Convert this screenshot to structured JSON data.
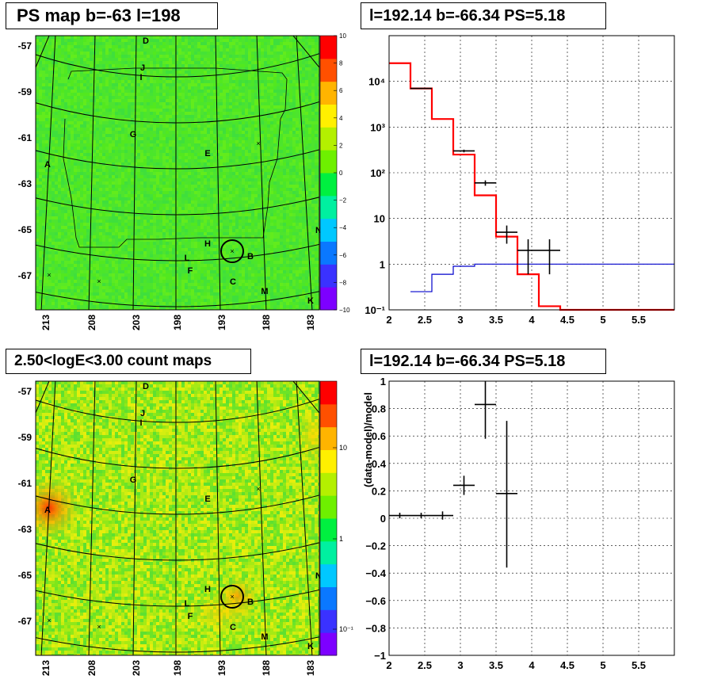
{
  "panels": {
    "tl_title": "PS map b=-63 l=198",
    "tr_title": "l=192.14 b=-66.34 PS=5.18",
    "bl_title": "2.50<logE<3.00 count maps",
    "br_title": "l=192.14 b=-66.34 PS=5.18"
  },
  "maps": {
    "b_labels": [
      "-57",
      "-59",
      "-61",
      "-63",
      "-65",
      "-67"
    ],
    "l_labels": [
      "213",
      "208",
      "203",
      "198",
      "193",
      "188",
      "183"
    ],
    "source_labels": [
      "D",
      "J",
      "I",
      "G",
      "E",
      "A",
      "H",
      "B",
      "L",
      "F",
      "C",
      "M",
      "K",
      "N"
    ]
  },
  "colorbars": {
    "top_labels": [
      "10",
      "8",
      "6",
      "4",
      "2",
      "0",
      "−2",
      "−4",
      "−6",
      "−8",
      "−10"
    ],
    "bottom_labels": [
      "10",
      "1",
      "10⁻¹"
    ],
    "top_palette": [
      "#7d00ff",
      "#3a32ff",
      "#0a78ff",
      "#00c8ff",
      "#00f0a0",
      "#00f040",
      "#6ef000",
      "#b4f000",
      "#fff000",
      "#ffb400",
      "#ff5000",
      "#ff0000"
    ],
    "bottom_palette": [
      "#7d00ff",
      "#3a32ff",
      "#0a78ff",
      "#00c8ff",
      "#00f0a0",
      "#00f040",
      "#6ef000",
      "#b4f000",
      "#fff000",
      "#ffb400",
      "#ff5000",
      "#ff0000"
    ]
  },
  "chart_data": [
    {
      "type": "histogram",
      "title": "l=192.14 b=-66.34 PS=5.18",
      "xlim": [
        2,
        6
      ],
      "ylim": [
        0.1,
        100000
      ],
      "yscale": "log",
      "grid": true,
      "x_tick_labels": [
        "2",
        "2.5",
        "3",
        "3.5",
        "4",
        "4.5",
        "5",
        "5.5"
      ],
      "y_tick_labels": [
        "10⁻¹",
        "1",
        "10",
        "10²",
        "10³",
        "10⁴"
      ],
      "series": [
        {
          "color": "#ff0000",
          "bins": [
            2.0,
            2.3,
            2.6,
            2.9,
            3.2,
            3.5,
            3.8,
            4.1,
            4.4,
            6.0
          ],
          "values": [
            25000,
            7000,
            1500,
            250,
            32,
            4,
            0.6,
            0.12,
            0.1
          ]
        },
        {
          "color": "#0000cc",
          "bins": [
            2.3,
            2.6,
            2.9,
            3.2,
            6.0
          ],
          "values": [
            0.25,
            0.6,
            0.9,
            1.0
          ]
        },
        {
          "color": "#000000",
          "points": [
            {
              "x": 2.45,
              "y": 7000,
              "xerr": 0.15,
              "ylo": 6800,
              "yhi": 7200
            },
            {
              "x": 3.05,
              "y": 300,
              "xerr": 0.15,
              "ylo": 280,
              "yhi": 320
            },
            {
              "x": 3.35,
              "y": 60,
              "xerr": 0.15,
              "ylo": 52,
              "yhi": 68
            },
            {
              "x": 3.65,
              "y": 5,
              "xerr": 0.15,
              "ylo": 2.8,
              "yhi": 7
            },
            {
              "x": 3.95,
              "y": 2,
              "xerr": 0.15,
              "ylo": 0.6,
              "yhi": 3.5
            },
            {
              "x": 4.25,
              "y": 2,
              "xerr": 0.15,
              "ylo": 0.6,
              "yhi": 3.5
            }
          ]
        }
      ]
    },
    {
      "type": "scatter",
      "title": "l=192.14 b=-66.34 PS=5.18",
      "ylabel": "(data-model)/model",
      "xlim": [
        2,
        6
      ],
      "ylim": [
        -1,
        1
      ],
      "grid": true,
      "x_tick_labels": [
        "2",
        "2.5",
        "3",
        "3.5",
        "4",
        "4.5",
        "5",
        "5.5"
      ],
      "y_tick_labels": [
        "−1",
        "−0.8",
        "−0.6",
        "−0.4",
        "−0.2",
        "0",
        "0.2",
        "0.4",
        "0.6",
        "0.8",
        "1"
      ],
      "points": [
        {
          "x": 2.15,
          "y": 0.02,
          "xerr": 0.15,
          "ylo": 0.0,
          "yhi": 0.04
        },
        {
          "x": 2.45,
          "y": 0.02,
          "xerr": 0.15,
          "ylo": 0.0,
          "yhi": 0.04
        },
        {
          "x": 2.75,
          "y": 0.02,
          "xerr": 0.15,
          "ylo": -0.01,
          "yhi": 0.05
        },
        {
          "x": 3.05,
          "y": 0.24,
          "xerr": 0.15,
          "ylo": 0.17,
          "yhi": 0.31
        },
        {
          "x": 3.35,
          "y": 0.83,
          "xerr": 0.15,
          "ylo": 0.58,
          "yhi": 1.0
        },
        {
          "x": 3.65,
          "y": 0.18,
          "xerr": 0.15,
          "ylo": -0.36,
          "yhi": 0.71
        }
      ]
    }
  ]
}
